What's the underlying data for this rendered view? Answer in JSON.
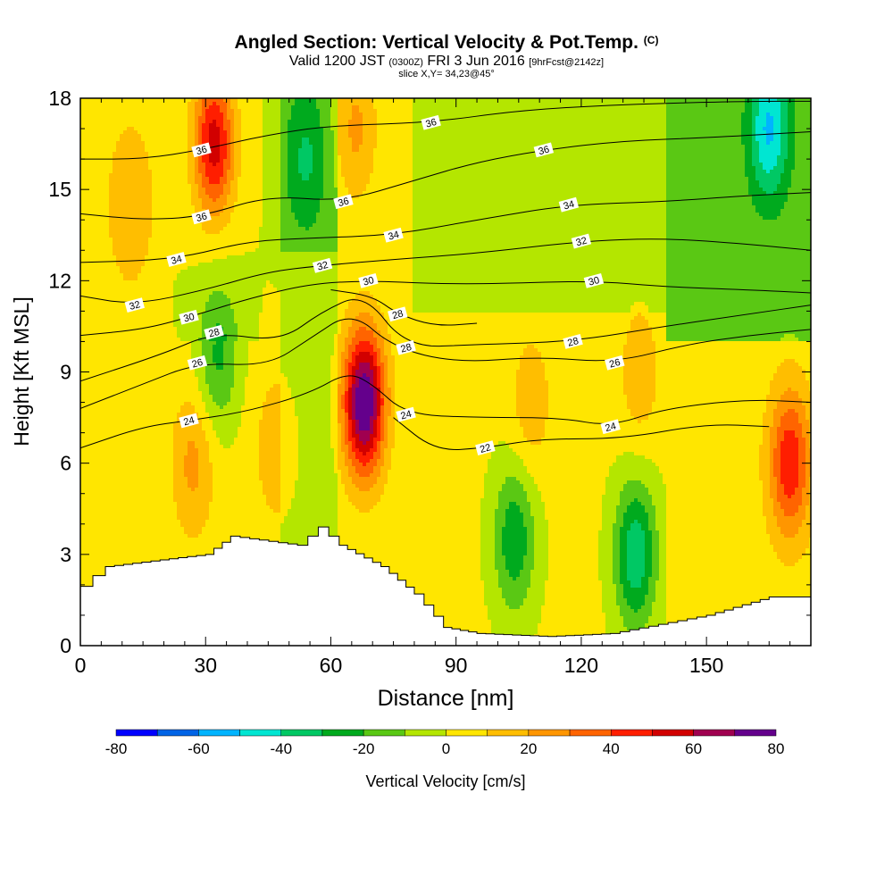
{
  "title": {
    "main": "Angled Section: Vertical Velocity & Pot.Temp.",
    "main_units": "(C)",
    "valid_prefix": "Valid 1200 JST",
    "valid_utc": "(0300Z)",
    "valid_date": "FRI 3 Jun 2016",
    "forecast": "[9hrFcst@2142z]",
    "slice": "slice X,Y= 34,23@45°"
  },
  "chart_data": {
    "type": "heatmap",
    "xlabel": "Distance [nm]",
    "ylabel": "Height [Kft MSL]",
    "xlim": [
      0,
      175
    ],
    "ylim": [
      0,
      18
    ],
    "x_ticks": [
      0,
      30,
      60,
      90,
      120,
      150
    ],
    "y_ticks": [
      0,
      3,
      6,
      9,
      12,
      15,
      18
    ],
    "colorbar": {
      "label": "Vertical Velocity [cm/s]",
      "ticks": [
        -80,
        -60,
        -40,
        -20,
        0,
        20,
        40,
        60,
        80
      ],
      "levels": [
        -80,
        -70,
        -60,
        -50,
        -40,
        -30,
        -20,
        -10,
        0,
        10,
        20,
        30,
        40,
        50,
        60,
        70,
        80
      ],
      "colors": [
        "#0000ff",
        "#0064e6",
        "#00b4ff",
        "#00e6d2",
        "#00c864",
        "#00aa1e",
        "#5ac814",
        "#b4e600",
        "#ffe600",
        "#ffbe00",
        "#ff9600",
        "#ff6400",
        "#ff1e00",
        "#d20000",
        "#a00050",
        "#64008c"
      ]
    },
    "terrain": [
      [
        0,
        1.95
      ],
      [
        3,
        2.3
      ],
      [
        6,
        2.6
      ],
      [
        30,
        3.0
      ],
      [
        36,
        3.6
      ],
      [
        52,
        3.3
      ],
      [
        57,
        3.9
      ],
      [
        62,
        3.3
      ],
      [
        72,
        2.6
      ],
      [
        80,
        1.7
      ],
      [
        87,
        0.6
      ],
      [
        95,
        0.4
      ],
      [
        112,
        0.3
      ],
      [
        127,
        0.4
      ],
      [
        150,
        1.0
      ],
      [
        165,
        1.6
      ],
      [
        175,
        1.6
      ]
    ],
    "vv_features": [
      {
        "x": 32,
        "z": 16.5,
        "value": 55
      },
      {
        "x": 68,
        "z": 8.0,
        "value": 80
      },
      {
        "x": 170,
        "z": 6.0,
        "value": 45
      },
      {
        "x": 104,
        "z": 3.5,
        "value": -30
      },
      {
        "x": 133,
        "z": 3.0,
        "value": -40
      },
      {
        "x": 165,
        "z": 17.0,
        "value": -40
      },
      {
        "x": 33,
        "z": 9.5,
        "value": -25
      },
      {
        "x": 54,
        "z": 16.0,
        "value": -20
      },
      {
        "x": 66,
        "z": 17.0,
        "value": 20
      },
      {
        "x": 12,
        "z": 14.5,
        "value": 15
      },
      {
        "x": 27,
        "z": 6.0,
        "value": 20
      },
      {
        "x": 47,
        "z": 6.5,
        "value": 15
      },
      {
        "x": 108,
        "z": 8.0,
        "value": 15
      },
      {
        "x": 134,
        "z": 9.0,
        "value": 15
      }
    ],
    "theta_contours": [
      {
        "value": 22,
        "labels": [
          [
            97,
            6.5
          ]
        ],
        "points": [
          [
            75,
            7.5
          ],
          [
            85,
            6.4
          ],
          [
            97,
            6.5
          ],
          [
            110,
            6.8
          ],
          [
            130,
            6.8
          ],
          [
            150,
            7.3
          ],
          [
            165,
            7.2
          ]
        ]
      },
      {
        "value": 24,
        "labels": [
          [
            26,
            7.4
          ],
          [
            78,
            7.6
          ],
          [
            127,
            7.2
          ]
        ],
        "points": [
          [
            0,
            6.5
          ],
          [
            15,
            7.2
          ],
          [
            26,
            7.4
          ],
          [
            40,
            7.7
          ],
          [
            55,
            8.3
          ],
          [
            64,
            9.0
          ],
          [
            70,
            8.6
          ],
          [
            78,
            7.6
          ],
          [
            95,
            7.5
          ],
          [
            115,
            7.5
          ],
          [
            127,
            7.2
          ],
          [
            140,
            7.8
          ],
          [
            160,
            8.1
          ],
          [
            175,
            8.0
          ]
        ]
      },
      {
        "value": 26,
        "labels": [
          [
            28,
            9.3
          ],
          [
            128,
            9.3
          ]
        ],
        "points": [
          [
            0,
            7.8
          ],
          [
            15,
            8.6
          ],
          [
            28,
            9.3
          ],
          [
            45,
            9.2
          ],
          [
            55,
            10.1
          ],
          [
            65,
            11.0
          ],
          [
            75,
            9.8
          ],
          [
            90,
            9.3
          ],
          [
            110,
            9.5
          ],
          [
            128,
            9.3
          ],
          [
            145,
            9.9
          ],
          [
            160,
            10.2
          ],
          [
            175,
            10.4
          ]
        ]
      },
      {
        "value": 28,
        "labels": [
          [
            32,
            10.3
          ],
          [
            78,
            9.8
          ],
          [
            118,
            10.0
          ]
        ],
        "points": [
          [
            0,
            8.7
          ],
          [
            20,
            9.6
          ],
          [
            32,
            10.3
          ],
          [
            48,
            10.0
          ],
          [
            58,
            11.0
          ],
          [
            68,
            11.6
          ],
          [
            78,
            9.8
          ],
          [
            95,
            9.9
          ],
          [
            118,
            10.0
          ],
          [
            140,
            10.5
          ],
          [
            160,
            10.9
          ],
          [
            175,
            11.2
          ]
        ]
      },
      {
        "value": 28,
        "labels": [
          [
            76,
            10.9
          ]
        ],
        "points": [
          [
            60,
            11.7
          ],
          [
            70,
            11.5
          ],
          [
            76,
            10.9
          ],
          [
            85,
            10.5
          ],
          [
            95,
            10.6
          ]
        ]
      },
      {
        "value": 30,
        "labels": [
          [
            26,
            10.8
          ],
          [
            69,
            12.0
          ],
          [
            123,
            12.0
          ]
        ],
        "points": [
          [
            0,
            10.2
          ],
          [
            15,
            10.4
          ],
          [
            26,
            10.8
          ],
          [
            40,
            11.4
          ],
          [
            55,
            11.9
          ],
          [
            69,
            12.0
          ],
          [
            85,
            11.9
          ],
          [
            100,
            11.9
          ],
          [
            123,
            12.0
          ],
          [
            140,
            11.8
          ],
          [
            160,
            11.7
          ],
          [
            175,
            11.6
          ]
        ]
      },
      {
        "value": 32,
        "labels": [
          [
            13,
            11.2
          ],
          [
            58,
            12.5
          ],
          [
            120,
            13.3
          ]
        ],
        "points": [
          [
            0,
            11.5
          ],
          [
            13,
            11.2
          ],
          [
            30,
            11.7
          ],
          [
            45,
            12.3
          ],
          [
            58,
            12.5
          ],
          [
            75,
            12.7
          ],
          [
            95,
            12.9
          ],
          [
            120,
            13.3
          ],
          [
            140,
            13.4
          ],
          [
            160,
            13.2
          ],
          [
            175,
            13.0
          ]
        ]
      },
      {
        "value": 34,
        "labels": [
          [
            23,
            12.7
          ],
          [
            75,
            13.5
          ],
          [
            117,
            14.5
          ]
        ],
        "points": [
          [
            0,
            12.6
          ],
          [
            23,
            12.7
          ],
          [
            40,
            13.3
          ],
          [
            55,
            13.4
          ],
          [
            75,
            13.5
          ],
          [
            95,
            14.0
          ],
          [
            117,
            14.5
          ],
          [
            140,
            14.6
          ],
          [
            160,
            14.8
          ],
          [
            175,
            14.9
          ]
        ]
      },
      {
        "value": 36,
        "labels": [
          [
            29,
            14.1
          ],
          [
            63,
            14.6
          ],
          [
            111,
            16.3
          ]
        ],
        "points": [
          [
            0,
            14.2
          ],
          [
            15,
            14.0
          ],
          [
            29,
            14.1
          ],
          [
            45,
            14.8
          ],
          [
            63,
            14.6
          ],
          [
            80,
            15.3
          ],
          [
            95,
            15.9
          ],
          [
            111,
            16.3
          ],
          [
            130,
            16.6
          ],
          [
            150,
            16.7
          ],
          [
            175,
            16.9
          ]
        ]
      },
      {
        "value": 36,
        "labels": [
          [
            29,
            16.3
          ],
          [
            84,
            17.2
          ]
        ],
        "points": [
          [
            0,
            16.0
          ],
          [
            15,
            16.0
          ],
          [
            29,
            16.3
          ],
          [
            45,
            16.8
          ],
          [
            60,
            17.1
          ],
          [
            84,
            17.2
          ],
          [
            105,
            17.6
          ],
          [
            130,
            17.8
          ],
          [
            160,
            17.9
          ],
          [
            175,
            17.9
          ]
        ]
      }
    ]
  }
}
